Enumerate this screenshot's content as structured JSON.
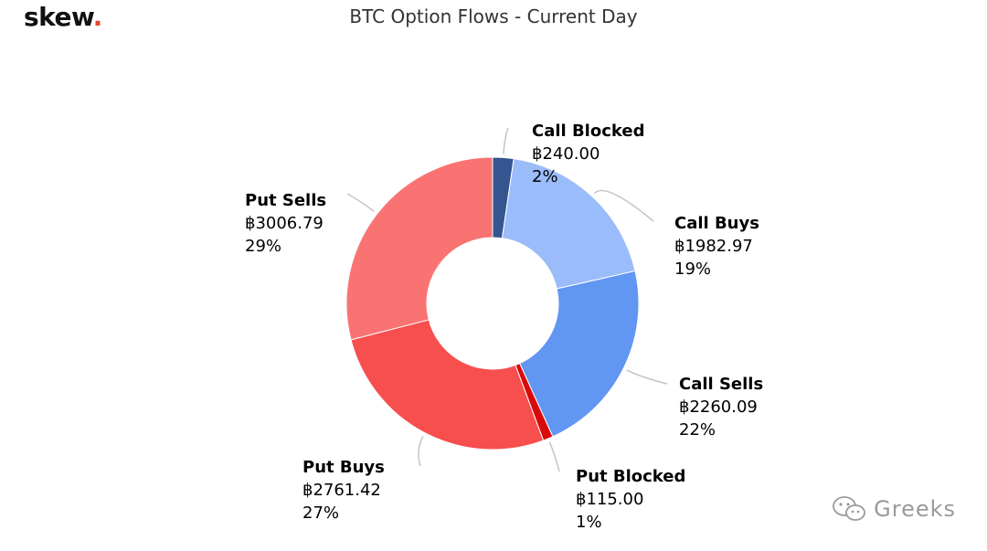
{
  "header": {
    "logo_text": "skew",
    "logo_dot": ".",
    "title": "BTC Option Flows - Current Day"
  },
  "watermark": {
    "text": "Greeks",
    "icon": "wechat-icon"
  },
  "colors": {
    "call_blocked": "#34558f",
    "call_buys": "#9bbcfa",
    "call_sells": "#6196f2",
    "put_blocked": "#d90a0a",
    "put_buys": "#f74e4e",
    "put_sells": "#fa7373",
    "leader": "#c4c4c4"
  },
  "chart_data": {
    "type": "pie",
    "donut": true,
    "title": "BTC Option Flows - Current Day",
    "currency_symbol": "฿",
    "slices": [
      {
        "name": "Call Blocked",
        "value": 240.0,
        "value_label": "฿240.00",
        "percent_label": "2%"
      },
      {
        "name": "Call Buys",
        "value": 1982.97,
        "value_label": "฿1982.97",
        "percent_label": "19%"
      },
      {
        "name": "Call Sells",
        "value": 2260.09,
        "value_label": "฿2260.09",
        "percent_label": "22%"
      },
      {
        "name": "Put Blocked",
        "value": 115.0,
        "value_label": "฿115.00",
        "percent_label": "1%"
      },
      {
        "name": "Put Buys",
        "value": 2761.42,
        "value_label": "฿2761.42",
        "percent_label": "27%"
      },
      {
        "name": "Put Sells",
        "value": 3006.79,
        "value_label": "฿3006.79",
        "percent_label": "29%"
      }
    ]
  }
}
